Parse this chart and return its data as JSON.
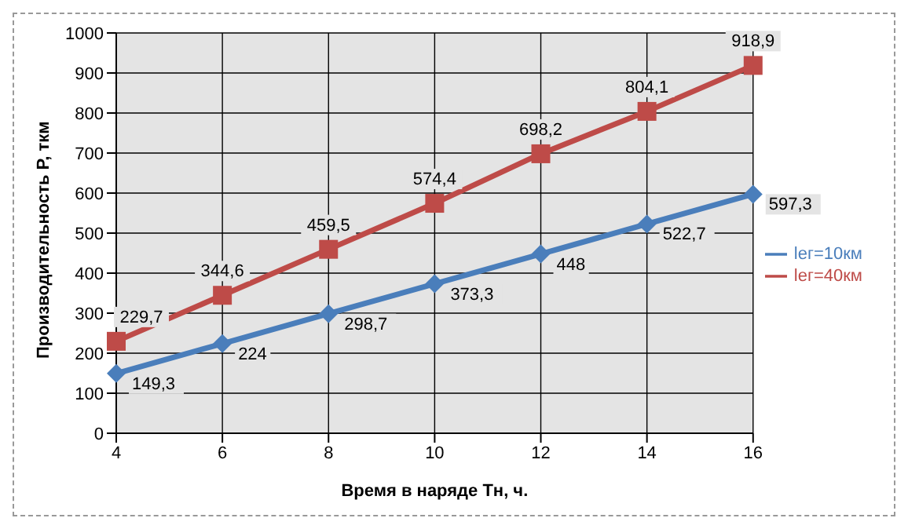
{
  "chart_data": {
    "type": "line",
    "xlabel": "Время в наряде Тн, ч.",
    "ylabel": "Производительность Р, ткм",
    "categories": [
      "4",
      "6",
      "8",
      "10",
      "12",
      "14",
      "16"
    ],
    "ylim": [
      0,
      1000
    ],
    "yticks": [
      0,
      100,
      200,
      300,
      400,
      500,
      600,
      700,
      800,
      900,
      1000
    ],
    "grid": true,
    "legend": "right",
    "series": [
      {
        "name": "lег=10км",
        "color": "#4a7ebb",
        "marker": "diamond",
        "values": [
          149.3,
          224,
          298.7,
          373.3,
          448,
          522.7,
          597.3
        ],
        "value_labels": [
          "149,3",
          "224",
          "298,7",
          "373,3",
          "448",
          "522,7",
          "597,3"
        ]
      },
      {
        "name": "lег=40км",
        "color": "#be4b48",
        "marker": "square",
        "values": [
          229.7,
          344.6,
          459.5,
          574.4,
          698.2,
          804.1,
          918.9
        ],
        "value_labels": [
          "229,7",
          "344,6",
          "459,5",
          "574,4",
          "698,2",
          "804,1",
          "918,9"
        ]
      }
    ]
  }
}
